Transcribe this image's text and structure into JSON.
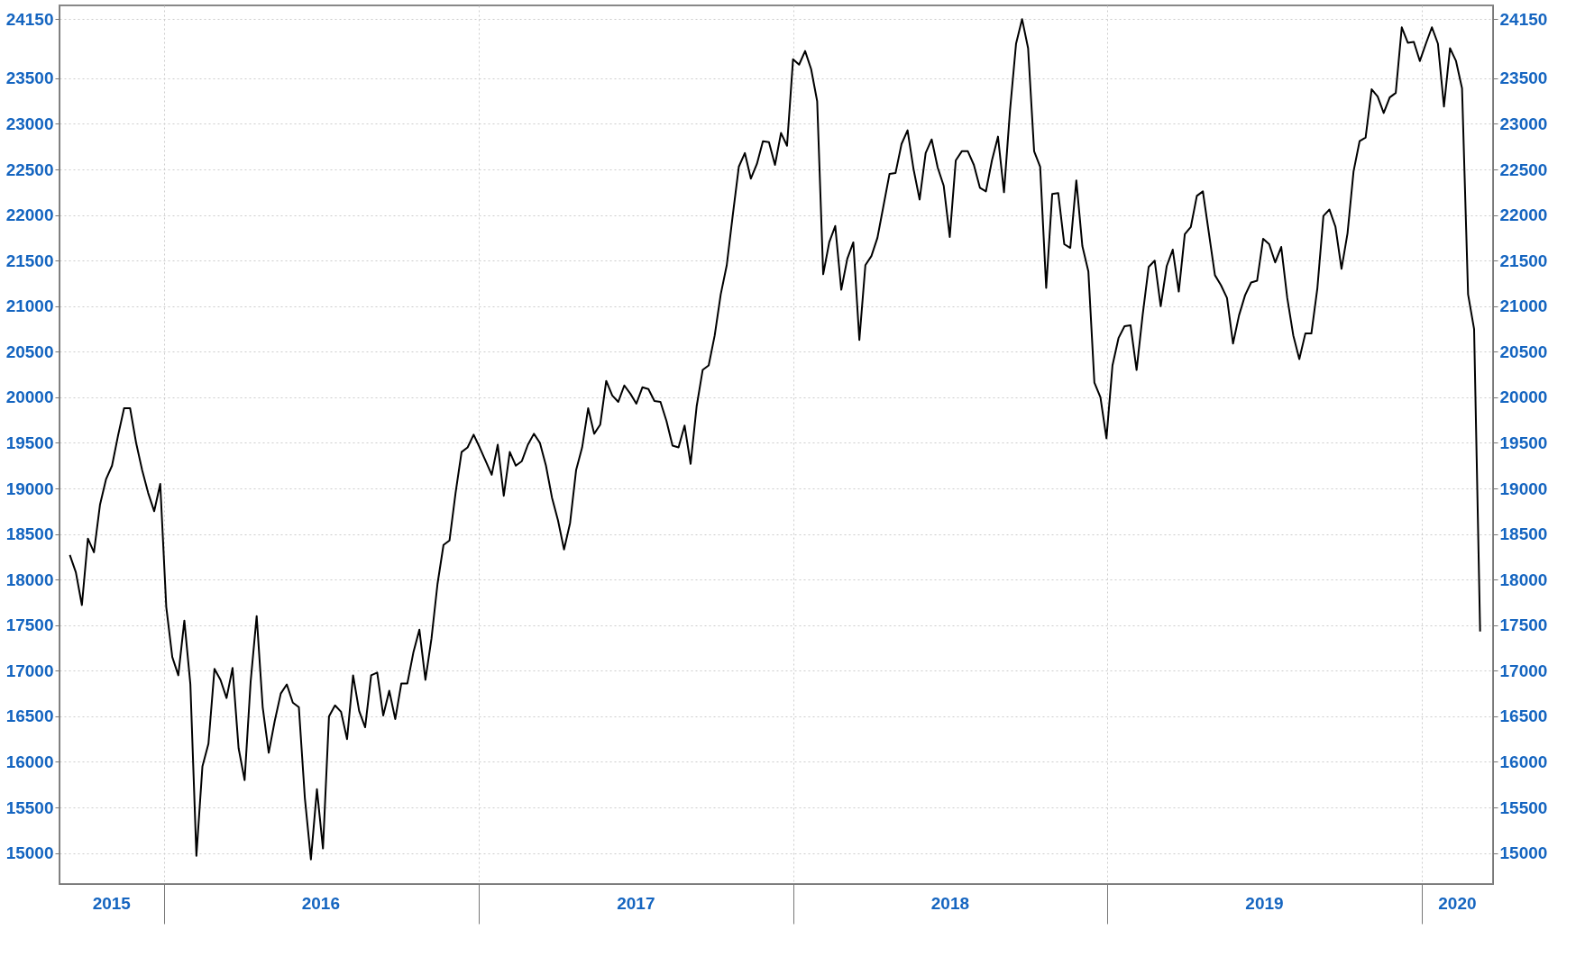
{
  "chart_data": {
    "type": "line",
    "x": [
      "2015-09-14",
      "2015-09-21",
      "2015-09-28",
      "2015-10-05",
      "2015-10-12",
      "2015-10-19",
      "2015-10-26",
      "2015-11-02",
      "2015-11-09",
      "2015-11-16",
      "2015-11-23",
      "2015-11-30",
      "2015-12-07",
      "2015-12-14",
      "2015-12-21",
      "2015-12-28",
      "2016-01-04",
      "2016-01-11",
      "2016-01-18",
      "2016-01-25",
      "2016-02-01",
      "2016-02-08",
      "2016-02-15",
      "2016-02-22",
      "2016-02-29",
      "2016-03-07",
      "2016-03-14",
      "2016-03-21",
      "2016-03-28",
      "2016-04-04",
      "2016-04-11",
      "2016-04-18",
      "2016-04-25",
      "2016-05-02",
      "2016-05-09",
      "2016-05-16",
      "2016-05-23",
      "2016-05-30",
      "2016-06-06",
      "2016-06-13",
      "2016-06-20",
      "2016-06-27",
      "2016-07-04",
      "2016-07-11",
      "2016-07-18",
      "2016-07-25",
      "2016-08-01",
      "2016-08-08",
      "2016-08-15",
      "2016-08-22",
      "2016-08-29",
      "2016-09-05",
      "2016-09-12",
      "2016-09-19",
      "2016-09-26",
      "2016-10-03",
      "2016-10-10",
      "2016-10-17",
      "2016-10-24",
      "2016-10-31",
      "2016-11-07",
      "2016-11-14",
      "2016-11-21",
      "2016-11-28",
      "2016-12-05",
      "2016-12-12",
      "2016-12-19",
      "2016-12-26",
      "2017-01-02",
      "2017-01-09",
      "2017-01-16",
      "2017-01-23",
      "2017-01-30",
      "2017-02-06",
      "2017-02-13",
      "2017-02-20",
      "2017-02-27",
      "2017-03-06",
      "2017-03-13",
      "2017-03-20",
      "2017-03-27",
      "2017-04-03",
      "2017-04-10",
      "2017-04-17",
      "2017-04-24",
      "2017-05-01",
      "2017-05-08",
      "2017-05-15",
      "2017-05-22",
      "2017-05-29",
      "2017-06-05",
      "2017-06-12",
      "2017-06-19",
      "2017-06-26",
      "2017-07-03",
      "2017-07-10",
      "2017-07-17",
      "2017-07-24",
      "2017-07-31",
      "2017-08-07",
      "2017-08-14",
      "2017-08-21",
      "2017-08-28",
      "2017-09-04",
      "2017-09-11",
      "2017-09-18",
      "2017-09-25",
      "2017-10-02",
      "2017-10-09",
      "2017-10-16",
      "2017-10-23",
      "2017-10-30",
      "2017-11-06",
      "2017-11-13",
      "2017-11-20",
      "2017-11-27",
      "2017-12-04",
      "2017-12-11",
      "2017-12-18",
      "2017-12-25",
      "2018-01-01",
      "2018-01-08",
      "2018-01-15",
      "2018-01-22",
      "2018-01-29",
      "2018-02-05",
      "2018-02-12",
      "2018-02-19",
      "2018-02-26",
      "2018-03-05",
      "2018-03-12",
      "2018-03-19",
      "2018-03-26",
      "2018-04-02",
      "2018-04-09",
      "2018-04-16",
      "2018-04-23",
      "2018-04-30",
      "2018-05-07",
      "2018-05-14",
      "2018-05-21",
      "2018-05-28",
      "2018-06-04",
      "2018-06-11",
      "2018-06-18",
      "2018-06-25",
      "2018-07-02",
      "2018-07-09",
      "2018-07-16",
      "2018-07-23",
      "2018-07-30",
      "2018-08-06",
      "2018-08-13",
      "2018-08-20",
      "2018-08-27",
      "2018-09-03",
      "2018-09-10",
      "2018-09-17",
      "2018-09-24",
      "2018-10-01",
      "2018-10-08",
      "2018-10-15",
      "2018-10-22",
      "2018-10-29",
      "2018-11-05",
      "2018-11-12",
      "2018-11-19",
      "2018-11-26",
      "2018-12-03",
      "2018-12-10",
      "2018-12-17",
      "2018-12-24",
      "2018-12-31",
      "2019-01-07",
      "2019-01-14",
      "2019-01-21",
      "2019-01-28",
      "2019-02-04",
      "2019-02-11",
      "2019-02-18",
      "2019-02-25",
      "2019-03-04",
      "2019-03-11",
      "2019-03-18",
      "2019-03-25",
      "2019-04-01",
      "2019-04-08",
      "2019-04-15",
      "2019-04-22",
      "2019-04-29",
      "2019-05-06",
      "2019-05-13",
      "2019-05-20",
      "2019-05-27",
      "2019-06-03",
      "2019-06-10",
      "2019-06-17",
      "2019-06-24",
      "2019-07-01",
      "2019-07-08",
      "2019-07-15",
      "2019-07-22",
      "2019-07-29",
      "2019-08-05",
      "2019-08-12",
      "2019-08-19",
      "2019-08-26",
      "2019-09-02",
      "2019-09-09",
      "2019-09-16",
      "2019-09-23",
      "2019-09-30",
      "2019-10-07",
      "2019-10-14",
      "2019-10-21",
      "2019-10-28",
      "2019-11-04",
      "2019-11-11",
      "2019-11-18",
      "2019-11-25",
      "2019-12-02",
      "2019-12-09",
      "2019-12-16",
      "2019-12-23",
      "2019-12-30",
      "2020-01-06",
      "2020-01-13",
      "2020-01-20",
      "2020-01-27",
      "2020-02-03",
      "2020-02-10",
      "2020-02-17",
      "2020-02-24",
      "2020-03-02",
      "2020-03-09"
    ],
    "series": [
      {
        "color": "#000000",
        "values": [
          18270,
          18080,
          17720,
          18450,
          18300,
          18820,
          19100,
          19250,
          19580,
          19880,
          19880,
          19500,
          19200,
          18950,
          18750,
          19050,
          17700,
          17150,
          16950,
          17550,
          16850,
          14970,
          15950,
          16200,
          17020,
          16900,
          16700,
          17030,
          16150,
          15800,
          16880,
          17600,
          16600,
          16100,
          16450,
          16750,
          16850,
          16650,
          16600,
          15600,
          14930,
          15700,
          15050,
          16500,
          16620,
          16550,
          16250,
          16950,
          16560,
          16380,
          16950,
          16980,
          16510,
          16780,
          16470,
          16860,
          16860,
          17200,
          17450,
          16900,
          17350,
          17950,
          18380,
          18430,
          18950,
          19400,
          19450,
          19590,
          19450,
          19300,
          19150,
          19480,
          18920,
          19400,
          19250,
          19300,
          19480,
          19600,
          19500,
          19250,
          18900,
          18650,
          18330,
          18620,
          19200,
          19450,
          19880,
          19600,
          19700,
          20180,
          20020,
          19950,
          20130,
          20040,
          19930,
          20110,
          20090,
          19960,
          19950,
          19740,
          19470,
          19450,
          19690,
          19270,
          19900,
          20300,
          20350,
          20680,
          21130,
          21450,
          22000,
          22530,
          22680,
          22400,
          22560,
          22810,
          22800,
          22550,
          22900,
          22760,
          23710,
          23650,
          23800,
          23600,
          23250,
          21350,
          21700,
          21880,
          21180,
          21520,
          21700,
          20630,
          21450,
          21550,
          21750,
          22100,
          22450,
          22460,
          22780,
          22930,
          22500,
          22170,
          22680,
          22830,
          22520,
          22320,
          21760,
          22600,
          22700,
          22700,
          22550,
          22300,
          22260,
          22600,
          22860,
          22250,
          23150,
          23880,
          24150,
          23830,
          22700,
          22530,
          21200,
          22230,
          22240,
          21680,
          21640,
          22380,
          21660,
          21380,
          20160,
          20000,
          19550,
          20350,
          20650,
          20780,
          20790,
          20300,
          20900,
          21430,
          21500,
          21000,
          21440,
          21620,
          21160,
          21790,
          21870,
          22210,
          22260,
          21800,
          21340,
          21230,
          21090,
          20590,
          20900,
          21120,
          21260,
          21280,
          21740,
          21680,
          21480,
          21650,
          21090,
          20680,
          20420,
          20700,
          20700,
          21200,
          21990,
          22060,
          21870,
          21410,
          21800,
          22480,
          22810,
          22850,
          23380,
          23300,
          23120,
          23290,
          23340,
          24060,
          23890,
          23900,
          23690,
          23880,
          24060,
          23880,
          23190,
          23830,
          23690,
          23390,
          21130,
          20750,
          17430
        ]
      }
    ],
    "xlim": [
      "2015-09-02",
      "2020-03-24"
    ],
    "xticks": [
      {
        "value": "2015-11-01",
        "label": "2015"
      },
      {
        "value": "2016-01-01",
        "label": null
      },
      {
        "value": "2016-07-01",
        "label": "2016"
      },
      {
        "value": "2017-01-01",
        "label": null
      },
      {
        "value": "2017-07-02",
        "label": "2017"
      },
      {
        "value": "2018-01-01",
        "label": null
      },
      {
        "value": "2018-07-02",
        "label": "2018"
      },
      {
        "value": "2019-01-01",
        "label": null
      },
      {
        "value": "2019-07-02",
        "label": "2019"
      },
      {
        "value": "2020-01-01",
        "label": null
      },
      {
        "value": "2020-02-11",
        "label": "2020"
      }
    ],
    "ylim": [
      14660,
      24300
    ],
    "yticks": [
      15000,
      15500,
      16000,
      16500,
      17000,
      17500,
      18000,
      18500,
      19000,
      19500,
      20000,
      20500,
      21000,
      21500,
      22000,
      22500,
      23000,
      23500,
      24150
    ],
    "y2lim": [
      14660,
      24300
    ],
    "y2ticks": [
      15000,
      15500,
      16000,
      16500,
      17000,
      17500,
      18000,
      18500,
      19000,
      19500,
      20000,
      20500,
      21000,
      21500,
      22000,
      22500,
      23000,
      23500,
      24150
    ],
    "grid": true,
    "line_style": "solid",
    "marker": "none"
  }
}
